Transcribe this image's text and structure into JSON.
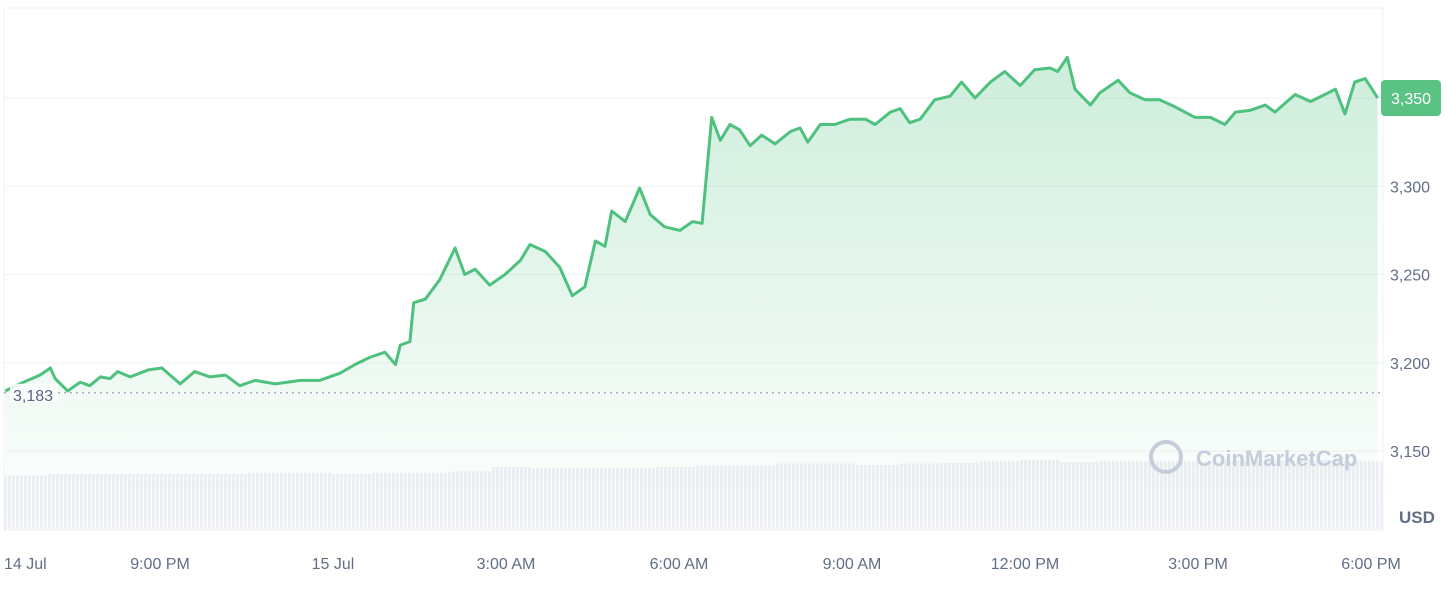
{
  "chart_data": {
    "type": "area",
    "currency_label": "USD",
    "watermark": "CoinMarketCap",
    "line_color": "#4fc17f",
    "ylim": [
      3125,
      3400
    ],
    "y_ticks": [
      {
        "value": 3150,
        "label": "3,150"
      },
      {
        "value": 3200,
        "label": "3,200"
      },
      {
        "value": 3250,
        "label": "3,250"
      },
      {
        "value": 3300,
        "label": "3,300"
      },
      {
        "value": 3350,
        "label": "3,350"
      }
    ],
    "x_ticks": [
      {
        "time": "14 Jul 18:00",
        "label": "14 Jul"
      },
      {
        "time": "14 Jul 21:00",
        "label": "9:00 PM"
      },
      {
        "time": "15 Jul 00:00",
        "label": "15 Jul"
      },
      {
        "time": "15 Jul 03:00",
        "label": "3:00 AM"
      },
      {
        "time": "15 Jul 06:00",
        "label": "6:00 AM"
      },
      {
        "time": "15 Jul 09:00",
        "label": "9:00 AM"
      },
      {
        "time": "15 Jul 12:00",
        "label": "12:00 PM"
      },
      {
        "time": "15 Jul 15:00",
        "label": "3:00 PM"
      },
      {
        "time": "15 Jul 18:00",
        "label": "6:00 PM"
      }
    ],
    "xlim": [
      "14 Jul 18:00",
      "15 Jul 18:15"
    ],
    "grid": true,
    "baseline": {
      "value": 3183,
      "label": "3,183"
    },
    "current_price": {
      "value": 3350,
      "label": "3,350",
      "color": "#5ac283"
    },
    "points": [
      [
        "14 Jul 18:19",
        3184
      ],
      [
        "14 Jul 18:34",
        3188
      ],
      [
        "14 Jul 18:55",
        3193
      ],
      [
        "14 Jul 19:06",
        3197
      ],
      [
        "14 Jul 19:11",
        3191
      ],
      [
        "14 Jul 19:24",
        3184
      ],
      [
        "14 Jul 19:37",
        3189
      ],
      [
        "14 Jul 19:47",
        3187
      ],
      [
        "14 Jul 19:58",
        3192
      ],
      [
        "14 Jul 20:08",
        3191
      ],
      [
        "14 Jul 20:16",
        3195
      ],
      [
        "14 Jul 20:29",
        3192
      ],
      [
        "14 Jul 20:48",
        3196
      ],
      [
        "14 Jul 21:02",
        3197
      ],
      [
        "14 Jul 21:21",
        3188
      ],
      [
        "14 Jul 21:36",
        3195
      ],
      [
        "14 Jul 21:52",
        3192
      ],
      [
        "14 Jul 22:08",
        3193
      ],
      [
        "14 Jul 22:23",
        3187
      ],
      [
        "14 Jul 22:39",
        3190
      ],
      [
        "14 Jul 23:00",
        3188
      ],
      [
        "14 Jul 23:26",
        3190
      ],
      [
        "14 Jul 23:46",
        3190
      ],
      [
        "15 Jul 00:07",
        3194
      ],
      [
        "15 Jul 00:23",
        3199
      ],
      [
        "15 Jul 00:38",
        3203
      ],
      [
        "15 Jul 00:54",
        3206
      ],
      [
        "15 Jul 01:05",
        3199
      ],
      [
        "15 Jul 01:10",
        3210
      ],
      [
        "15 Jul 01:20",
        3212
      ],
      [
        "15 Jul 01:24",
        3234
      ],
      [
        "15 Jul 01:36",
        3236
      ],
      [
        "15 Jul 01:51",
        3247
      ],
      [
        "15 Jul 02:07",
        3265
      ],
      [
        "15 Jul 02:17",
        3250
      ],
      [
        "15 Jul 02:28",
        3253
      ],
      [
        "15 Jul 02:43",
        3244
      ],
      [
        "15 Jul 02:59",
        3250
      ],
      [
        "15 Jul 03:15",
        3258
      ],
      [
        "15 Jul 03:25",
        3267
      ],
      [
        "15 Jul 03:41",
        3263
      ],
      [
        "15 Jul 03:56",
        3254
      ],
      [
        "15 Jul 04:09",
        3238
      ],
      [
        "15 Jul 04:22",
        3243
      ],
      [
        "15 Jul 04:33",
        3269
      ],
      [
        "15 Jul 04:43",
        3266
      ],
      [
        "15 Jul 04:50",
        3286
      ],
      [
        "15 Jul 05:04",
        3280
      ],
      [
        "15 Jul 05:19",
        3299
      ],
      [
        "15 Jul 05:30",
        3284
      ],
      [
        "15 Jul 05:45",
        3277
      ],
      [
        "15 Jul 06:01",
        3275
      ],
      [
        "15 Jul 06:14",
        3280
      ],
      [
        "15 Jul 06:24",
        3279
      ],
      [
        "15 Jul 06:34",
        3339
      ],
      [
        "15 Jul 06:43",
        3326
      ],
      [
        "15 Jul 06:53",
        3335
      ],
      [
        "15 Jul 07:03",
        3332
      ],
      [
        "15 Jul 07:14",
        3323
      ],
      [
        "15 Jul 07:26",
        3329
      ],
      [
        "15 Jul 07:40",
        3324
      ],
      [
        "15 Jul 07:56",
        3331
      ],
      [
        "15 Jul 08:06",
        3333
      ],
      [
        "15 Jul 08:14",
        3325
      ],
      [
        "15 Jul 08:27",
        3335
      ],
      [
        "15 Jul 08:42",
        3335
      ],
      [
        "15 Jul 08:58",
        3338
      ],
      [
        "15 Jul 09:14",
        3338
      ],
      [
        "15 Jul 09:24",
        3335
      ],
      [
        "15 Jul 09:40",
        3342
      ],
      [
        "15 Jul 09:50",
        3344
      ],
      [
        "15 Jul 10:00",
        3336
      ],
      [
        "15 Jul 10:11",
        3338
      ],
      [
        "15 Jul 10:26",
        3349
      ],
      [
        "15 Jul 10:42",
        3351
      ],
      [
        "15 Jul 10:54",
        3359
      ],
      [
        "15 Jul 11:08",
        3350
      ],
      [
        "15 Jul 11:24",
        3359
      ],
      [
        "15 Jul 11:39",
        3365
      ],
      [
        "15 Jul 11:55",
        3357
      ],
      [
        "15 Jul 12:10",
        3366
      ],
      [
        "15 Jul 12:26",
        3367
      ],
      [
        "15 Jul 12:34",
        3365
      ],
      [
        "15 Jul 12:44",
        3373
      ],
      [
        "15 Jul 12:52",
        3355
      ],
      [
        "15 Jul 13:08",
        3346
      ],
      [
        "15 Jul 13:18",
        3353
      ],
      [
        "15 Jul 13:37",
        3360
      ],
      [
        "15 Jul 13:49",
        3353
      ],
      [
        "15 Jul 14:05",
        3349
      ],
      [
        "15 Jul 14:20",
        3349
      ],
      [
        "15 Jul 14:36",
        3345
      ],
      [
        "15 Jul 14:57",
        3339
      ],
      [
        "15 Jul 15:13",
        3339
      ],
      [
        "15 Jul 15:28",
        3335
      ],
      [
        "15 Jul 15:39",
        3342
      ],
      [
        "15 Jul 15:54",
        3343
      ],
      [
        "15 Jul 16:10",
        3346
      ],
      [
        "15 Jul 16:20",
        3342
      ],
      [
        "15 Jul 16:41",
        3352
      ],
      [
        "15 Jul 16:57",
        3348
      ],
      [
        "15 Jul 17:12",
        3352
      ],
      [
        "15 Jul 17:23",
        3355
      ],
      [
        "15 Jul 17:33",
        3341
      ],
      [
        "15 Jul 17:43",
        3359
      ],
      [
        "15 Jul 17:54",
        3361
      ],
      [
        "15 Jul 18:07",
        3350
      ]
    ],
    "volume_relative": [
      0.78,
      0.8,
      0.8,
      0.8,
      0.8,
      0.8,
      0.82,
      0.82,
      0.8,
      0.82,
      0.82,
      0.84,
      0.9,
      0.88,
      0.88,
      0.88,
      0.9,
      0.92,
      0.92,
      0.95,
      0.95,
      0.93,
      0.95,
      0.96,
      0.98,
      1.0,
      0.97,
      0.98,
      0.98,
      0.98,
      0.99,
      0.99,
      1.0,
      0.98
    ]
  }
}
